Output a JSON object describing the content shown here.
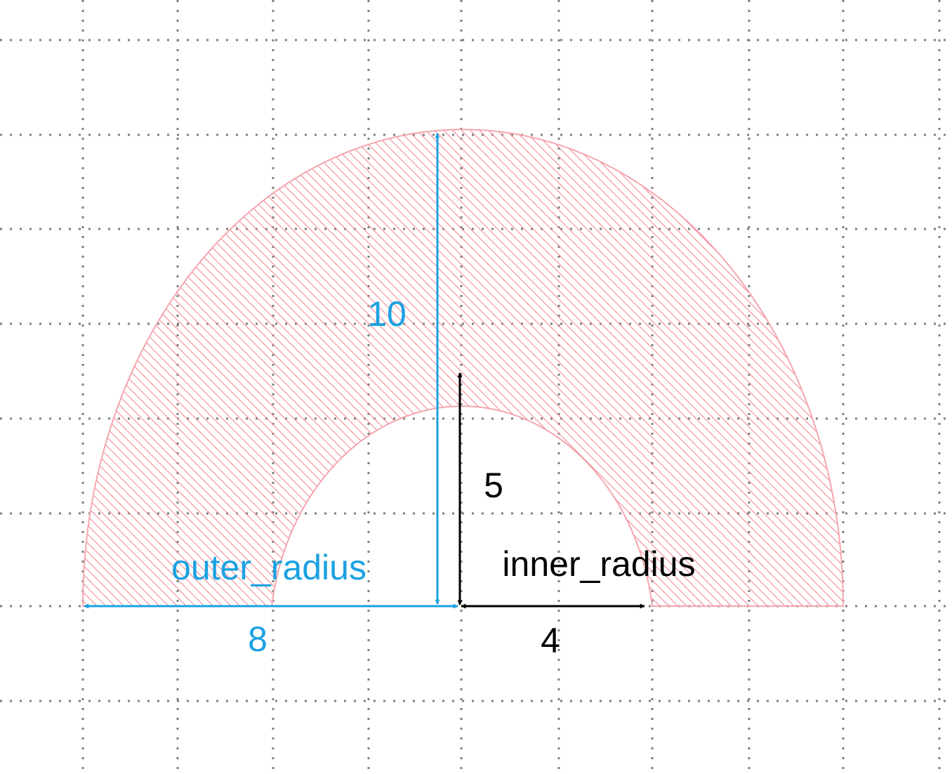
{
  "colors": {
    "outer": "#1ba1e2",
    "inner": "#000000",
    "shape_stroke": "#f4a6ad",
    "hatch": "#f08a94",
    "grid": "#7f7f7f",
    "background": "#ffffff"
  },
  "shape": {
    "kind": "half-annulus",
    "fill": "diagonal hatch"
  },
  "grid": {
    "visible": true,
    "style": "dotted"
  },
  "labels": {
    "outer_radius_name": "outer_radius",
    "inner_radius_name": "inner_radius",
    "outer_height": "10",
    "outer_width": "8",
    "inner_height": "5",
    "inner_width": "4"
  }
}
